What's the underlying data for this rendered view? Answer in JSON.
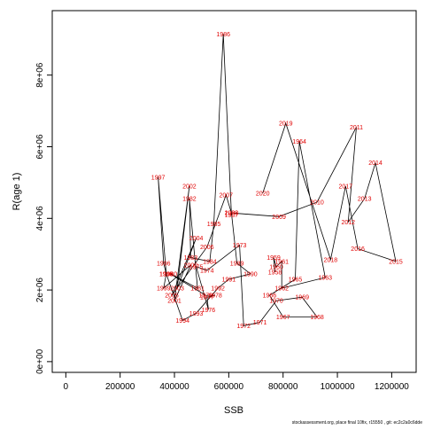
{
  "footer": "stockassessment.org, place final 10fix, r15550 , git: ec2c2a0c6dde",
  "chart_data": {
    "type": "line",
    "title": "",
    "xlabel": "SSB",
    "ylabel": "R(age 1)",
    "xlim": [
      -50000,
      1290000
    ],
    "ylim": [
      -300000,
      9800000
    ],
    "xticks": [
      0,
      200000,
      400000,
      600000,
      800000,
      1000000,
      1200000
    ],
    "xtick_labels": [
      "0",
      "200000",
      "400000",
      "600000",
      "800000",
      "1000000",
      "1200000"
    ],
    "yticks": [
      0,
      2000000,
      4000000,
      6000000,
      8000000
    ],
    "ytick_labels": [
      "0e+00",
      "2e+06",
      "4e+06",
      "6e+06",
      "8e+06"
    ],
    "grid": false,
    "legend": "none",
    "line_color": "#000000",
    "label_color": "#e00000",
    "points": [
      {
        "year": "1958",
        "ssb": 770000,
        "r": 2500000
      },
      {
        "year": "1959",
        "ssb": 765000,
        "r": 2900000
      },
      {
        "year": "1960",
        "ssb": 775000,
        "r": 2650000
      },
      {
        "year": "1961",
        "ssb": 795000,
        "r": 2800000
      },
      {
        "year": "1962",
        "ssb": 795000,
        "r": 2050000
      },
      {
        "year": "1963",
        "ssb": 955000,
        "r": 2350000
      },
      {
        "year": "1964",
        "ssb": 860000,
        "r": 6150000
      },
      {
        "year": "1965",
        "ssb": 845000,
        "r": 2300000
      },
      {
        "year": "1966",
        "ssb": 750000,
        "r": 1850000
      },
      {
        "year": "1967",
        "ssb": 800000,
        "r": 1250000
      },
      {
        "year": "1968",
        "ssb": 925000,
        "r": 1250000
      },
      {
        "year": "1969",
        "ssb": 870000,
        "r": 1800000
      },
      {
        "year": "1970",
        "ssb": 775000,
        "r": 1700000
      },
      {
        "year": "1971",
        "ssb": 715000,
        "r": 1100000
      },
      {
        "year": "1972",
        "ssb": 655000,
        "r": 1000000
      },
      {
        "year": "1973",
        "ssb": 640000,
        "r": 3250000
      },
      {
        "year": "1974",
        "ssb": 520000,
        "r": 2550000
      },
      {
        "year": "1975",
        "ssb": 480000,
        "r": 2650000
      },
      {
        "year": "1976",
        "ssb": 525000,
        "r": 1450000
      },
      {
        "year": "1977",
        "ssb": 520000,
        "r": 1800000
      },
      {
        "year": "1978",
        "ssb": 550000,
        "r": 1850000
      },
      {
        "year": "1979",
        "ssb": 515000,
        "r": 1850000
      },
      {
        "year": "1980",
        "ssb": 385000,
        "r": 2450000
      },
      {
        "year": "1981",
        "ssb": 485000,
        "r": 2050000
      },
      {
        "year": "1982",
        "ssb": 455000,
        "r": 4550000
      },
      {
        "year": "1983",
        "ssb": 460000,
        "r": 2900000
      },
      {
        "year": "1984",
        "ssb": 530000,
        "r": 2800000
      },
      {
        "year": "1985",
        "ssb": 545000,
        "r": 3850000
      },
      {
        "year": "1986",
        "ssb": 580000,
        "r": 9150000
      },
      {
        "year": "1987",
        "ssb": 610000,
        "r": 4100000
      },
      {
        "year": "1988",
        "ssb": 610000,
        "r": 4150000
      },
      {
        "year": "1989",
        "ssb": 630000,
        "r": 2750000
      },
      {
        "year": "1990",
        "ssb": 680000,
        "r": 2450000
      },
      {
        "year": "1991",
        "ssb": 600000,
        "r": 2300000
      },
      {
        "year": "1992",
        "ssb": 560000,
        "r": 2050000
      },
      {
        "year": "1993",
        "ssb": 480000,
        "r": 1350000
      },
      {
        "year": "1994",
        "ssb": 430000,
        "r": 1150000
      },
      {
        "year": "1995",
        "ssb": 370000,
        "r": 2450000
      },
      {
        "year": "1996",
        "ssb": 360000,
        "r": 2750000
      },
      {
        "year": "1997",
        "ssb": 340000,
        "r": 5150000
      },
      {
        "year": "1998",
        "ssb": 370000,
        "r": 2450000
      },
      {
        "year": "1999",
        "ssb": 360000,
        "r": 2050000
      },
      {
        "year": "2000",
        "ssb": 460000,
        "r": 2700000
      },
      {
        "year": "2001",
        "ssb": 400000,
        "r": 1700000
      },
      {
        "year": "2002",
        "ssb": 455000,
        "r": 4900000
      },
      {
        "year": "2003",
        "ssb": 410000,
        "r": 2050000
      },
      {
        "year": "2004",
        "ssb": 480000,
        "r": 3450000
      },
      {
        "year": "2005",
        "ssb": 390000,
        "r": 1850000
      },
      {
        "year": "2006",
        "ssb": 520000,
        "r": 3200000
      },
      {
        "year": "2007",
        "ssb": 590000,
        "r": 4650000
      },
      {
        "year": "2008",
        "ssb": 610000,
        "r": 4150000
      },
      {
        "year": "2009",
        "ssb": 785000,
        "r": 4050000
      },
      {
        "year": "2010",
        "ssb": 925000,
        "r": 4450000
      },
      {
        "year": "2011",
        "ssb": 1070000,
        "r": 6550000
      },
      {
        "year": "2012",
        "ssb": 1040000,
        "r": 3900000
      },
      {
        "year": "2013",
        "ssb": 1100000,
        "r": 4550000
      },
      {
        "year": "2014",
        "ssb": 1140000,
        "r": 5550000
      },
      {
        "year": "2015",
        "ssb": 1215000,
        "r": 2800000
      },
      {
        "year": "2016",
        "ssb": 1075000,
        "r": 3150000
      },
      {
        "year": "2017",
        "ssb": 1030000,
        "r": 4900000
      },
      {
        "year": "2018",
        "ssb": 975000,
        "r": 2850000
      },
      {
        "year": "2019",
        "ssb": 810000,
        "r": 6650000
      },
      {
        "year": "2020",
        "ssb": 725000,
        "r": 4700000
      }
    ]
  }
}
